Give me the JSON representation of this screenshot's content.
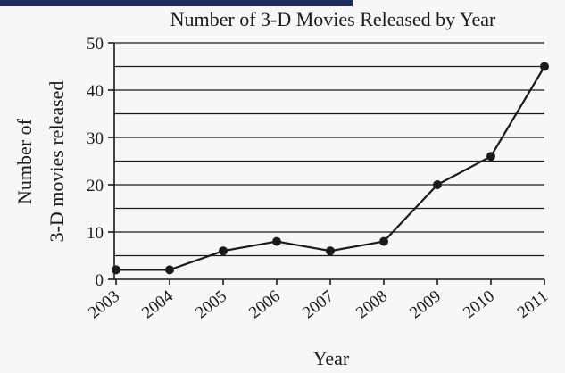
{
  "chart_data": {
    "type": "line",
    "title": "Number of 3-D Movies Released by Year",
    "xlabel": "Year",
    "ylabel_lines": [
      "Number of",
      "3-D movies released"
    ],
    "categories": [
      "2003",
      "2004",
      "2005",
      "2006",
      "2007",
      "2008",
      "2009",
      "2010",
      "2011"
    ],
    "values": [
      2,
      2,
      6,
      8,
      6,
      8,
      20,
      26,
      45
    ],
    "ylim": [
      0,
      50
    ],
    "y_ticks": [
      0,
      10,
      20,
      30,
      40,
      50
    ],
    "y_gridlines": [
      5,
      10,
      15,
      20,
      25,
      30,
      35,
      40,
      45,
      50
    ],
    "grid": "horizontal",
    "line_color": "#1a1a1a",
    "grid_color": "#1a1a1a",
    "header_bar_color": "#1f2a5c"
  }
}
